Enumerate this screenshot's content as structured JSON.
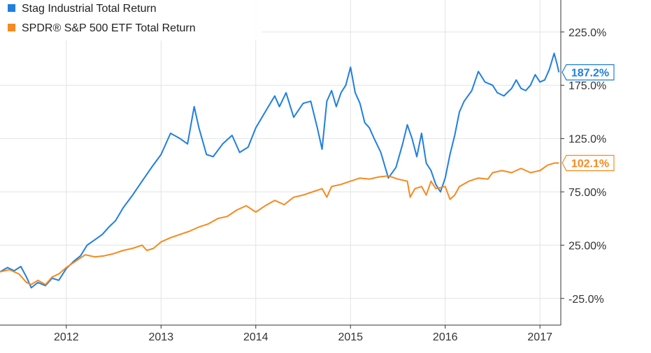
{
  "colors": {
    "stag": "#1f7fe0",
    "spy": "#f7891e",
    "grid": "#e3e3e3",
    "axis": "#333333",
    "background": "#ffffff"
  },
  "chart_data": {
    "type": "line",
    "title": "",
    "xlabel": "",
    "ylabel": "",
    "grid": true,
    "legend_position": "top-left",
    "y_axis_side": "right",
    "x_tick_labels": [
      "2012",
      "2013",
      "2014",
      "2015",
      "2016",
      "2017"
    ],
    "y_tick_labels": [
      "-25.0%",
      "25.00%",
      "75.00%",
      "125.0%",
      "175.0%",
      "225.0%"
    ],
    "y_ticks": [
      -25,
      25,
      75,
      125,
      175,
      225
    ],
    "xlim": [
      2011.3,
      2017.22
    ],
    "ylim": [
      -50,
      255
    ],
    "series": [
      {
        "name": "Stag Industrial Total Return",
        "color": "#1f7fe0",
        "end_label": "187.2%",
        "x": [
          2011.3,
          2011.38,
          2011.45,
          2011.52,
          2011.58,
          2011.63,
          2011.7,
          2011.78,
          2011.85,
          2011.92,
          2012.0,
          2012.08,
          2012.15,
          2012.22,
          2012.3,
          2012.38,
          2012.45,
          2012.52,
          2012.6,
          2012.7,
          2012.8,
          2012.9,
          2013.0,
          2013.1,
          2013.2,
          2013.28,
          2013.35,
          2013.4,
          2013.48,
          2013.55,
          2013.65,
          2013.75,
          2013.83,
          2013.92,
          2014.0,
          2014.1,
          2014.2,
          2014.25,
          2014.32,
          2014.4,
          2014.5,
          2014.58,
          2014.65,
          2014.7,
          2014.75,
          2014.8,
          2014.85,
          2014.9,
          2014.95,
          2015.0,
          2015.05,
          2015.1,
          2015.15,
          2015.2,
          2015.25,
          2015.32,
          2015.4,
          2015.48,
          2015.55,
          2015.6,
          2015.65,
          2015.7,
          2015.75,
          2015.8,
          2015.85,
          2015.9,
          2015.95,
          2016.0,
          2016.05,
          2016.1,
          2016.15,
          2016.2,
          2016.28,
          2016.35,
          2016.42,
          2016.5,
          2016.55,
          2016.62,
          2016.7,
          2016.75,
          2016.8,
          2016.85,
          2016.9,
          2016.95,
          2017.0,
          2017.05,
          2017.1,
          2017.15,
          2017.18,
          2017.2
        ],
        "values": [
          0,
          4,
          1,
          5,
          -5,
          -15,
          -10,
          -13,
          -6,
          -8,
          3,
          10,
          15,
          25,
          30,
          35,
          42,
          48,
          60,
          72,
          85,
          98,
          110,
          130,
          125,
          120,
          155,
          135,
          110,
          108,
          120,
          128,
          112,
          117,
          135,
          150,
          165,
          155,
          168,
          145,
          158,
          160,
          135,
          115,
          160,
          170,
          155,
          168,
          175,
          192,
          168,
          158,
          140,
          135,
          125,
          112,
          88,
          98,
          120,
          138,
          125,
          108,
          130,
          102,
          95,
          82,
          75,
          88,
          110,
          128,
          150,
          160,
          170,
          188,
          178,
          175,
          168,
          165,
          172,
          180,
          172,
          170,
          175,
          185,
          178,
          180,
          190,
          205,
          195,
          187.2
        ]
      },
      {
        "name": "SPDR® S&P 500 ETF Total Return",
        "color": "#f7891e",
        "end_label": "102.1%",
        "x": [
          2011.3,
          2011.4,
          2011.5,
          2011.58,
          2011.63,
          2011.7,
          2011.78,
          2011.85,
          2011.92,
          2012.0,
          2012.1,
          2012.2,
          2012.3,
          2012.4,
          2012.5,
          2012.6,
          2012.7,
          2012.8,
          2012.85,
          2012.92,
          2013.0,
          2013.1,
          2013.2,
          2013.3,
          2013.4,
          2013.5,
          2013.6,
          2013.7,
          2013.8,
          2013.9,
          2014.0,
          2014.1,
          2014.2,
          2014.3,
          2014.4,
          2014.5,
          2014.6,
          2014.7,
          2014.75,
          2014.8,
          2014.9,
          2015.0,
          2015.1,
          2015.2,
          2015.3,
          2015.4,
          2015.5,
          2015.6,
          2015.63,
          2015.68,
          2015.75,
          2015.8,
          2015.85,
          2015.9,
          2016.0,
          2016.05,
          2016.1,
          2016.15,
          2016.25,
          2016.35,
          2016.45,
          2016.5,
          2016.6,
          2016.7,
          2016.8,
          2016.9,
          2017.0,
          2017.08,
          2017.15,
          2017.2
        ],
        "values": [
          0,
          2,
          -2,
          -10,
          -12,
          -8,
          -12,
          -5,
          -2,
          4,
          10,
          16,
          14,
          15,
          17,
          20,
          22,
          25,
          20,
          22,
          28,
          32,
          35,
          38,
          42,
          45,
          50,
          52,
          58,
          62,
          56,
          62,
          67,
          63,
          70,
          72,
          75,
          78,
          70,
          80,
          82,
          85,
          88,
          87,
          89,
          90,
          87,
          85,
          70,
          78,
          80,
          72,
          85,
          78,
          80,
          68,
          72,
          80,
          85,
          88,
          87,
          93,
          95,
          93,
          97,
          93,
          95,
          100,
          102,
          102.1
        ]
      }
    ]
  },
  "legend": {
    "items": [
      {
        "label": "Stag Industrial Total Return",
        "color": "#1f7fe0"
      },
      {
        "label": "SPDR® S&P 500 ETF Total Return",
        "color": "#f7891e"
      }
    ]
  }
}
